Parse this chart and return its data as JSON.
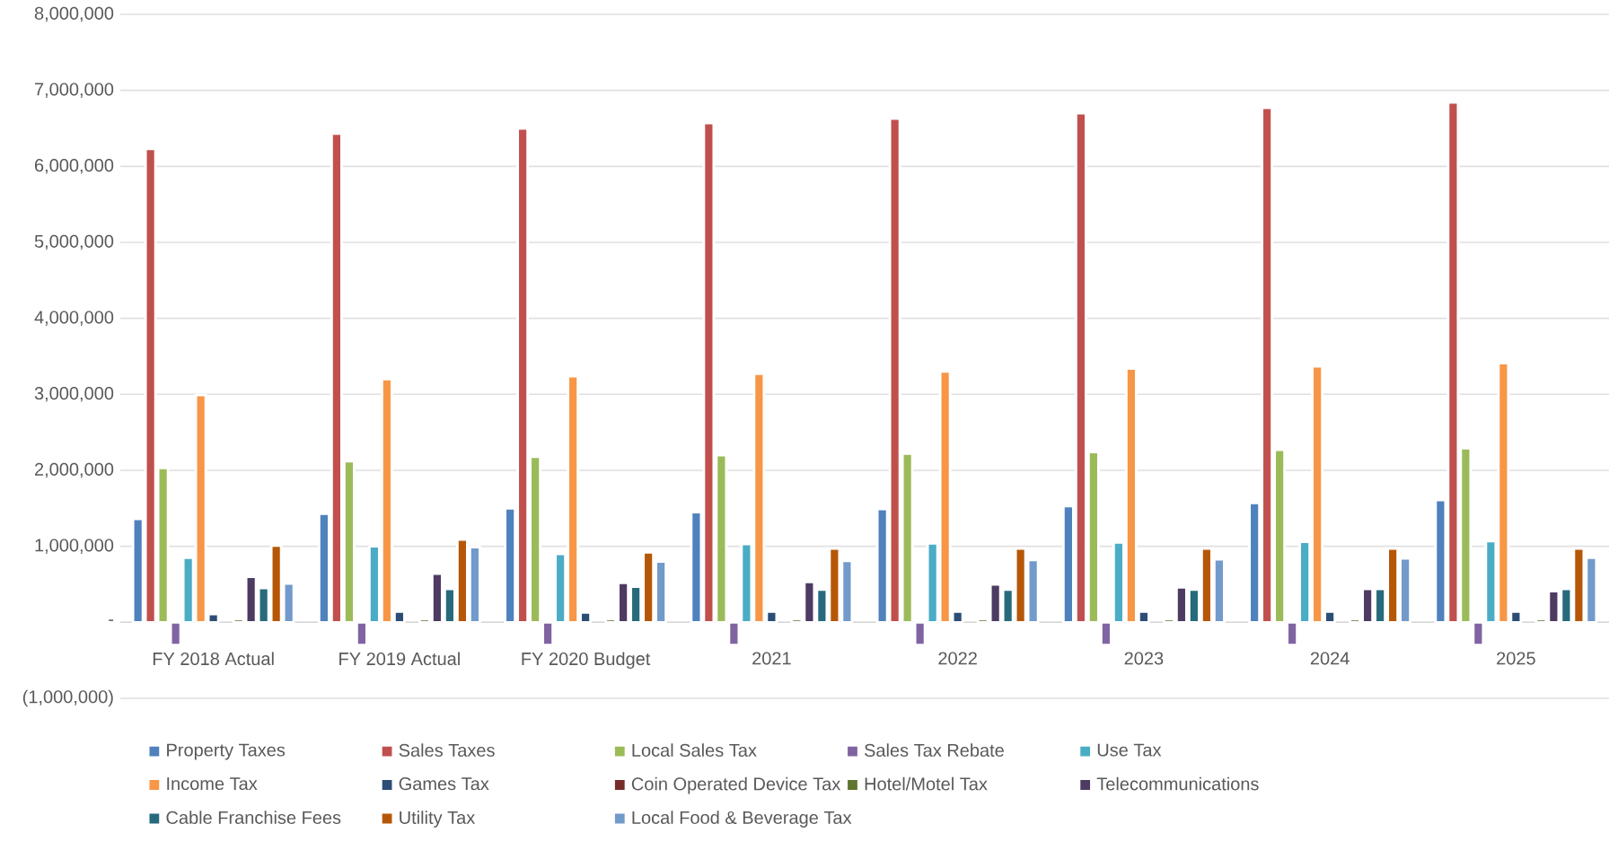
{
  "chart_data": {
    "type": "bar",
    "categories": [
      "FY 2018 Actual",
      "FY 2019 Actual",
      "FY 2020 Budget",
      "2021",
      "2022",
      "2023",
      "2024",
      "2025"
    ],
    "series": [
      {
        "name": "Property Taxes",
        "color": "#4f81bd",
        "values": [
          1360000,
          1430000,
          1500000,
          1450000,
          1490000,
          1530000,
          1570000,
          1610000
        ]
      },
      {
        "name": "Sales Taxes",
        "color": "#c0504d",
        "values": [
          6230000,
          6430000,
          6500000,
          6570000,
          6630000,
          6700000,
          6770000,
          6840000
        ]
      },
      {
        "name": "Local Sales Tax",
        "color": "#9bbb59",
        "values": [
          2030000,
          2120000,
          2180000,
          2200000,
          2220000,
          2240000,
          2270000,
          2290000
        ]
      },
      {
        "name": "Sales Tax Rebate",
        "color": "#8064a2",
        "values": [
          -300000,
          -300000,
          -300000,
          -300000,
          -300000,
          -300000,
          -300000,
          -300000
        ]
      },
      {
        "name": "Use Tax",
        "color": "#4bacc6",
        "values": [
          850000,
          1000000,
          900000,
          1030000,
          1040000,
          1050000,
          1060000,
          1070000
        ]
      },
      {
        "name": "Income Tax",
        "color": "#f79646",
        "values": [
          2990000,
          3200000,
          3240000,
          3270000,
          3300000,
          3340000,
          3370000,
          3410000
        ]
      },
      {
        "name": "Games Tax",
        "color": "#2c4d75",
        "values": [
          110000,
          140000,
          130000,
          140000,
          140000,
          140000,
          140000,
          140000
        ]
      },
      {
        "name": "Coin Operated Device Tax",
        "color": "#772c2a",
        "values": [
          0,
          0,
          0,
          0,
          0,
          0,
          0,
          0
        ]
      },
      {
        "name": "Hotel/Motel Tax",
        "color": "#5f7530",
        "values": [
          40000,
          40000,
          40000,
          40000,
          40000,
          40000,
          40000,
          40000
        ]
      },
      {
        "name": "Telecommunications",
        "color": "#4d3b62",
        "values": [
          600000,
          640000,
          520000,
          530000,
          500000,
          460000,
          440000,
          410000
        ]
      },
      {
        "name": "Cable Franchise Fees",
        "color": "#276a7c",
        "values": [
          450000,
          440000,
          470000,
          430000,
          430000,
          430000,
          440000,
          440000
        ]
      },
      {
        "name": "Utility Tax",
        "color": "#b65708",
        "values": [
          1010000,
          1090000,
          920000,
          970000,
          970000,
          970000,
          970000,
          970000
        ]
      },
      {
        "name": "Local Food & Beverage Tax",
        "color": "#729aca",
        "values": [
          510000,
          990000,
          800000,
          810000,
          820000,
          830000,
          840000,
          850000
        ]
      }
    ],
    "ylim": [
      -1000000,
      8000000
    ],
    "yticks": [
      {
        "value": -1000000,
        "label": "(1,000,000)"
      },
      {
        "value": 0,
        "label": "-"
      },
      {
        "value": 1000000,
        "label": "1,000,000"
      },
      {
        "value": 2000000,
        "label": "2,000,000"
      },
      {
        "value": 3000000,
        "label": "3,000,000"
      },
      {
        "value": 4000000,
        "label": "4,000,000"
      },
      {
        "value": 5000000,
        "label": "5,000,000"
      },
      {
        "value": 6000000,
        "label": "6,000,000"
      },
      {
        "value": 7000000,
        "label": "7,000,000"
      },
      {
        "value": 8000000,
        "label": "8,000,000"
      }
    ],
    "grid": "y",
    "legend": "bottom"
  }
}
